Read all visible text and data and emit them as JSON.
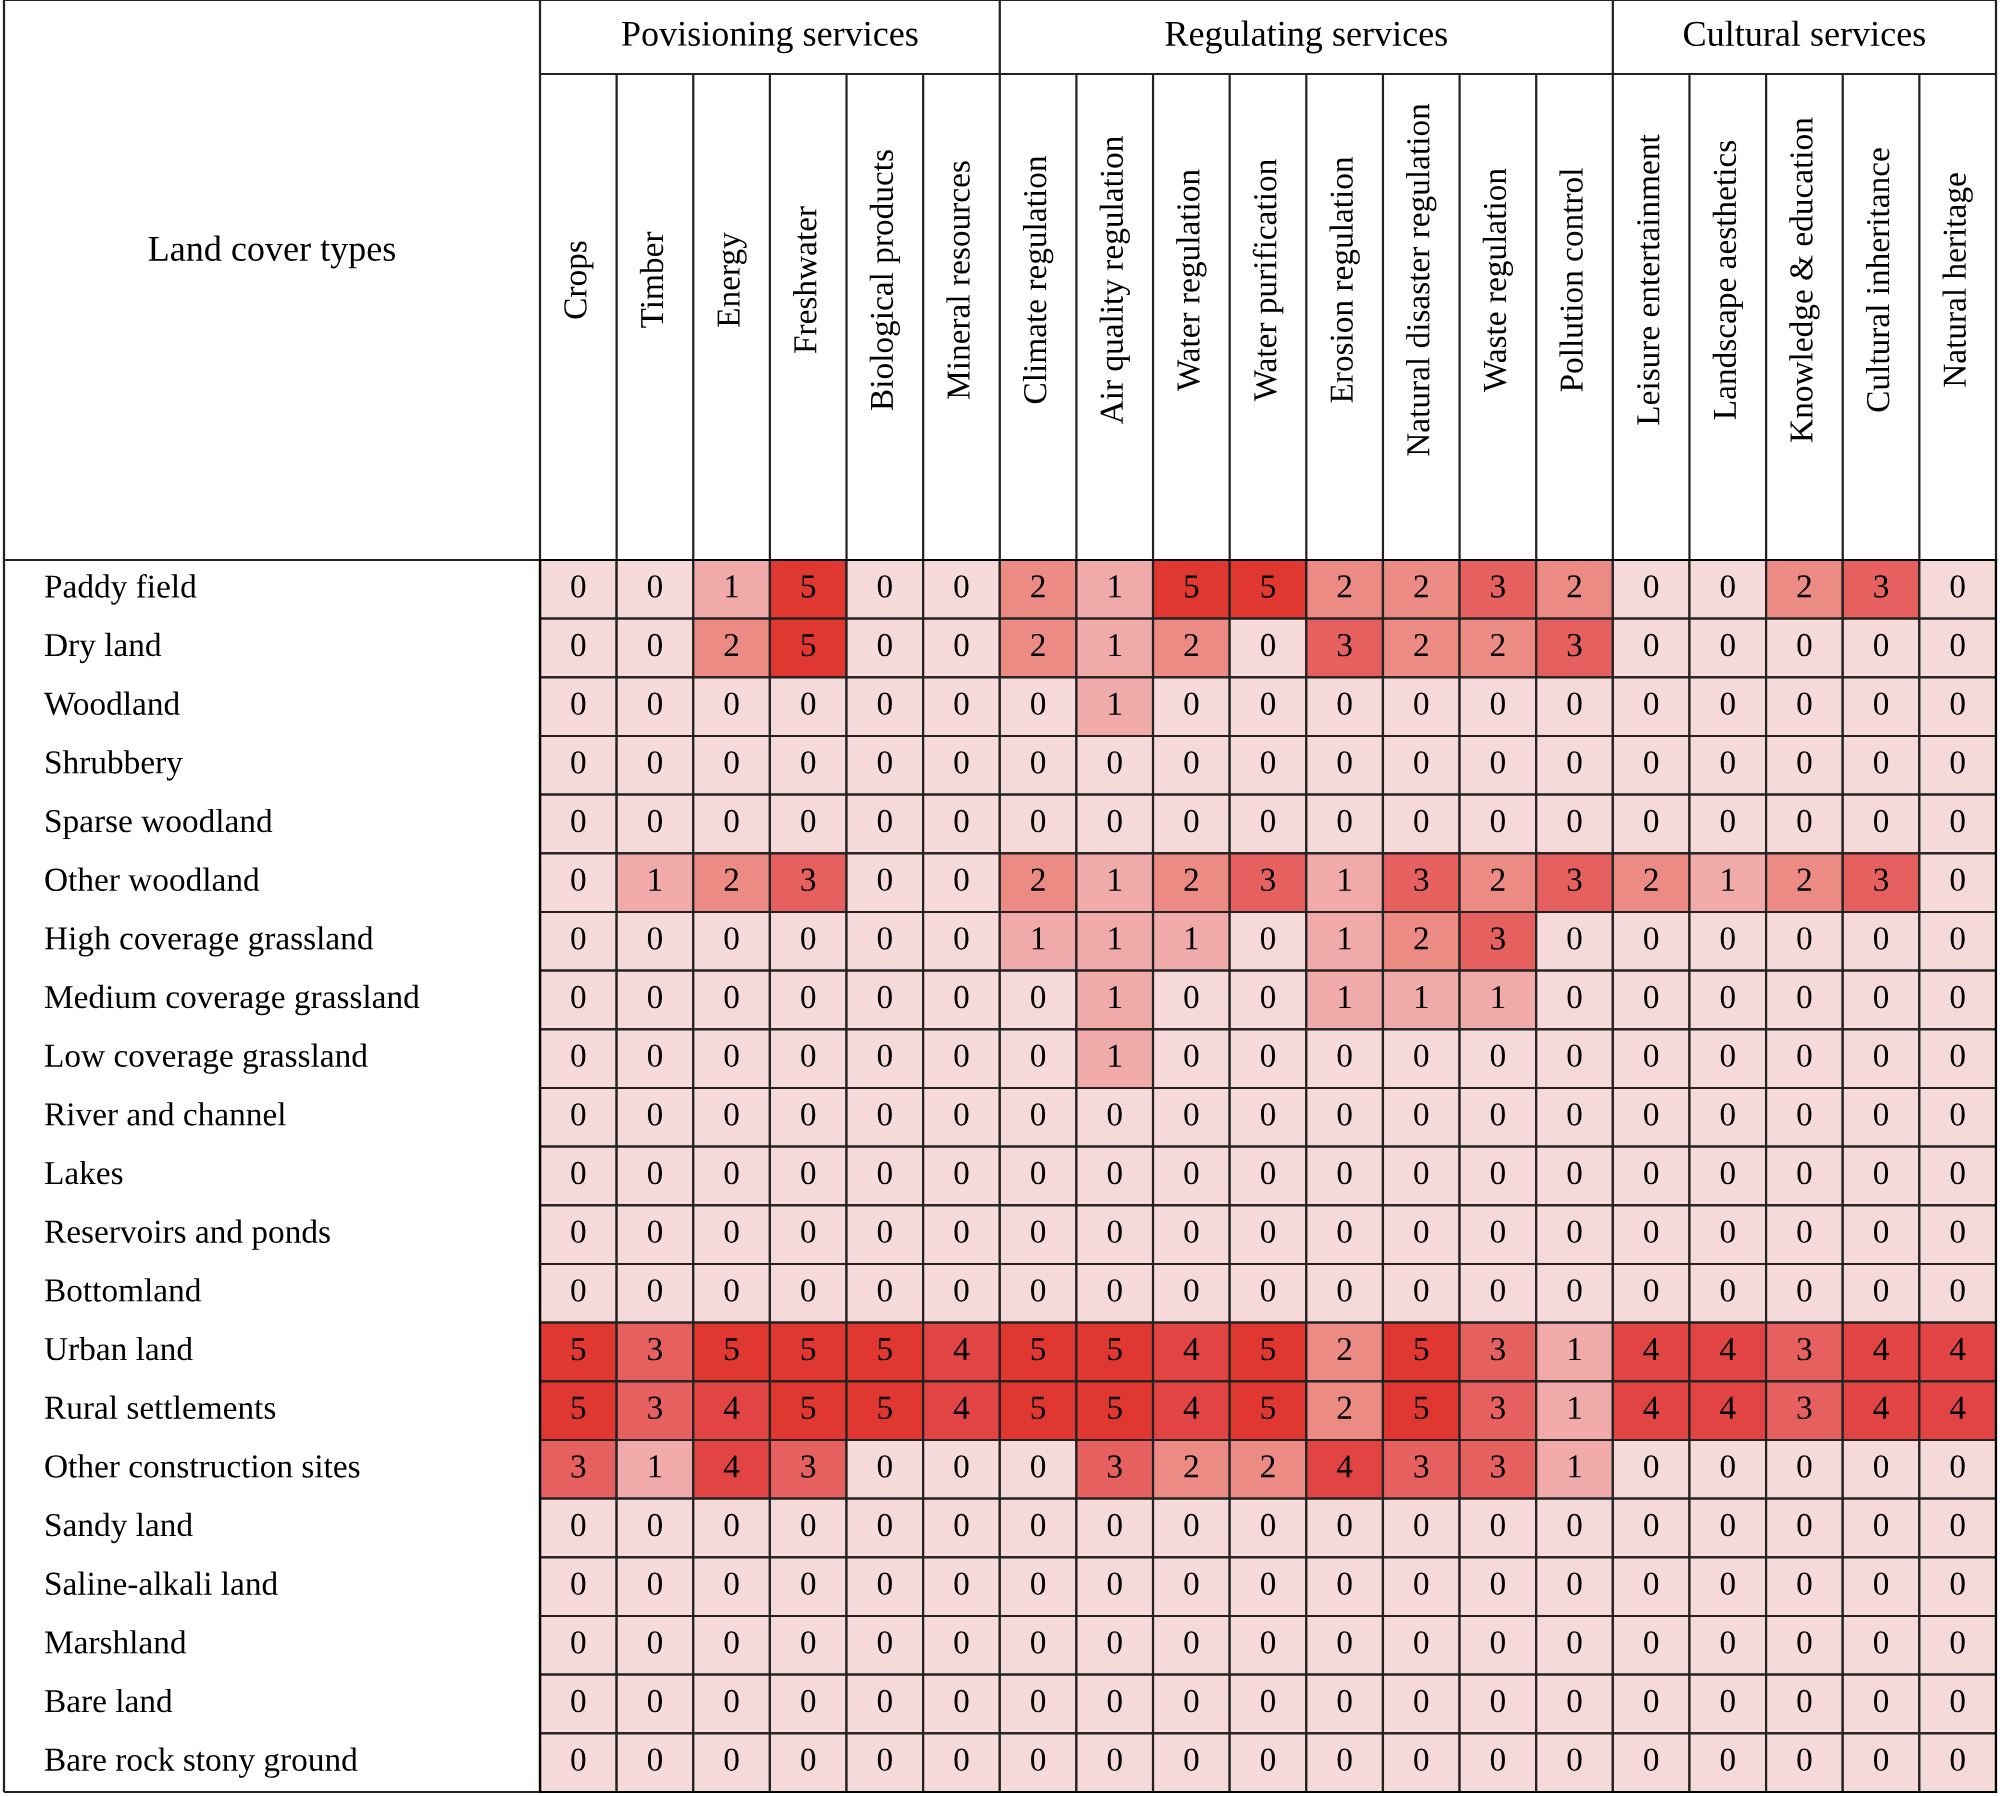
{
  "chart_data": {
    "type": "heatmap",
    "ylabel": "Land cover types",
    "categories": [
      "Crops",
      "Timber",
      "Energy",
      "Freshwater",
      "Biological products",
      "Mineral resources",
      "Climate regulation",
      "Air quality regulation",
      "Water regulation",
      "Water purification",
      "Erosion regulation",
      "Natural disaster regulation",
      "Waste regulation",
      "Pollution control",
      "Leisure entertainment",
      "Landscape aesthetics",
      "Knowledge & education",
      "Cultural inheritance",
      "Natural heritage"
    ],
    "y_categories": [
      "Paddy field",
      "Dry land",
      "Woodland",
      "Shrubbery",
      "Sparse woodland",
      "Other woodland",
      "High coverage grassland",
      "Medium coverage grassland",
      "Low coverage grassland",
      "River and channel",
      "Lakes",
      "Reservoirs and ponds",
      "Bottomland",
      "Urban land",
      "Rural settlements",
      "Other construction sites",
      "Sandy land",
      "Saline-alkali land",
      "Marshland",
      "Bare land",
      "Bare rock stony ground"
    ],
    "cells": [
      [
        0,
        0,
        1,
        5,
        0,
        0,
        2,
        1,
        5,
        5,
        2,
        2,
        3,
        2,
        0,
        0,
        2,
        3,
        0
      ],
      [
        0,
        0,
        2,
        5,
        0,
        0,
        2,
        1,
        2,
        0,
        3,
        2,
        2,
        3,
        0,
        0,
        0,
        0,
        0
      ],
      [
        0,
        0,
        0,
        0,
        0,
        0,
        0,
        1,
        0,
        0,
        0,
        0,
        0,
        0,
        0,
        0,
        0,
        0,
        0
      ],
      [
        0,
        0,
        0,
        0,
        0,
        0,
        0,
        0,
        0,
        0,
        0,
        0,
        0,
        0,
        0,
        0,
        0,
        0,
        0
      ],
      [
        0,
        0,
        0,
        0,
        0,
        0,
        0,
        0,
        0,
        0,
        0,
        0,
        0,
        0,
        0,
        0,
        0,
        0,
        0
      ],
      [
        0,
        1,
        2,
        3,
        0,
        0,
        2,
        1,
        2,
        3,
        1,
        3,
        2,
        3,
        2,
        1,
        2,
        3,
        0
      ],
      [
        0,
        0,
        0,
        0,
        0,
        0,
        1,
        1,
        1,
        0,
        1,
        2,
        3,
        0,
        0,
        0,
        0,
        0,
        0
      ],
      [
        0,
        0,
        0,
        0,
        0,
        0,
        0,
        1,
        0,
        0,
        1,
        1,
        1,
        0,
        0,
        0,
        0,
        0,
        0
      ],
      [
        0,
        0,
        0,
        0,
        0,
        0,
        0,
        1,
        0,
        0,
        0,
        0,
        0,
        0,
        0,
        0,
        0,
        0,
        0
      ],
      [
        0,
        0,
        0,
        0,
        0,
        0,
        0,
        0,
        0,
        0,
        0,
        0,
        0,
        0,
        0,
        0,
        0,
        0,
        0
      ],
      [
        0,
        0,
        0,
        0,
        0,
        0,
        0,
        0,
        0,
        0,
        0,
        0,
        0,
        0,
        0,
        0,
        0,
        0,
        0
      ],
      [
        0,
        0,
        0,
        0,
        0,
        0,
        0,
        0,
        0,
        0,
        0,
        0,
        0,
        0,
        0,
        0,
        0,
        0,
        0
      ],
      [
        0,
        0,
        0,
        0,
        0,
        0,
        0,
        0,
        0,
        0,
        0,
        0,
        0,
        0,
        0,
        0,
        0,
        0,
        0
      ],
      [
        5,
        3,
        5,
        5,
        5,
        4,
        5,
        5,
        4,
        5,
        2,
        5,
        3,
        1,
        4,
        4,
        3,
        4,
        4
      ],
      [
        5,
        3,
        4,
        5,
        5,
        4,
        5,
        5,
        4,
        5,
        2,
        5,
        3,
        1,
        4,
        4,
        3,
        4,
        4
      ],
      [
        3,
        1,
        4,
        3,
        0,
        0,
        0,
        3,
        2,
        2,
        4,
        3,
        3,
        1,
        0,
        0,
        0,
        0,
        0
      ],
      [
        0,
        0,
        0,
        0,
        0,
        0,
        0,
        0,
        0,
        0,
        0,
        0,
        0,
        0,
        0,
        0,
        0,
        0,
        0
      ],
      [
        0,
        0,
        0,
        0,
        0,
        0,
        0,
        0,
        0,
        0,
        0,
        0,
        0,
        0,
        0,
        0,
        0,
        0,
        0
      ],
      [
        0,
        0,
        0,
        0,
        0,
        0,
        0,
        0,
        0,
        0,
        0,
        0,
        0,
        0,
        0,
        0,
        0,
        0,
        0
      ],
      [
        0,
        0,
        0,
        0,
        0,
        0,
        0,
        0,
        0,
        0,
        0,
        0,
        0,
        0,
        0,
        0,
        0,
        0,
        0
      ],
      [
        0,
        0,
        0,
        0,
        0,
        0,
        0,
        0,
        0,
        0,
        0,
        0,
        0,
        0,
        0,
        0,
        0,
        0,
        0
      ]
    ],
    "colors": [
      "#f6dada",
      "#f0aaaa",
      "#ec8a84",
      "#e66060",
      "#e24444",
      "#e03830"
    ],
    "data_labels": true,
    "annotations": [
      "Povisioning services",
      "Regulating services",
      "Cultural services"
    ]
  }
}
